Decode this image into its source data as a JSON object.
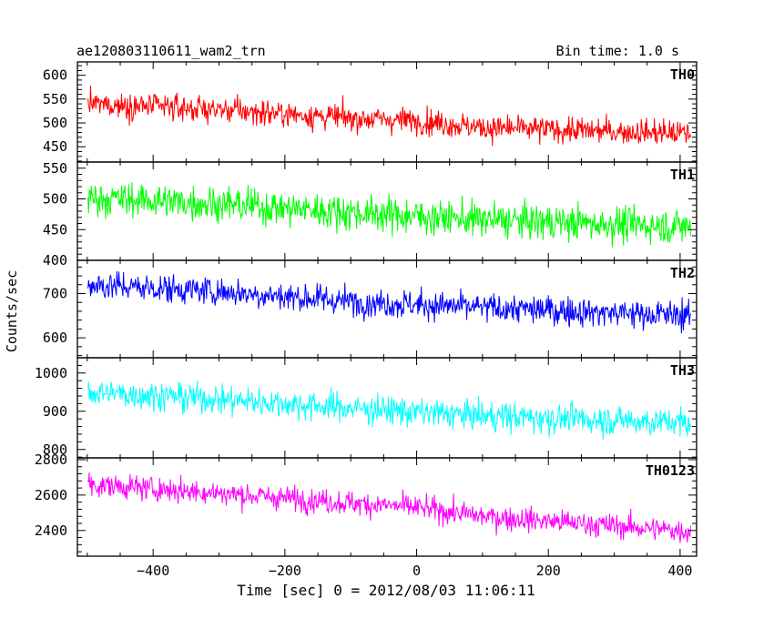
{
  "header": {
    "title": "ae120803110611_wam2_trn",
    "bin_time": "Bin time: 1.0 s"
  },
  "chart_data": {
    "type": "line",
    "title": "ae120803110611_wam2_trn",
    "subtitle": "Bin time: 1.0 s",
    "xlabel": "Time [sec] 0 = 2012/08/03 11:06:11",
    "ylabel": "Counts/sec",
    "xlim": [
      -515,
      425
    ],
    "x_ticks": [
      -400,
      -200,
      0,
      200,
      400
    ],
    "x_tick_labels": [
      "−400",
      "−200",
      "0",
      "200",
      "400"
    ],
    "x_start": -499,
    "x_end": 416,
    "grid": false,
    "panels": [
      {
        "name": "TH0",
        "color": "#ff0000",
        "ylim": [
          418,
          628
        ],
        "ticks": [
          450,
          500,
          550,
          600
        ],
        "trend": [
          [
            -499,
            540
          ],
          [
            -300,
            528
          ],
          [
            -100,
            510
          ],
          [
            0,
            505
          ],
          [
            100,
            490
          ],
          [
            416,
            478
          ]
        ],
        "noise_sd": 19
      },
      {
        "name": "TH1",
        "color": "#00ff00",
        "ylim": [
          400,
          560
        ],
        "ticks": [
          400,
          450,
          500,
          550
        ],
        "trend": [
          [
            -499,
            502
          ],
          [
            -300,
            492
          ],
          [
            -100,
            478
          ],
          [
            100,
            466
          ],
          [
            416,
            455
          ]
        ],
        "noise_sd": 20
      },
      {
        "name": "TH2",
        "color": "#0000ff",
        "ylim": [
          555,
          775
        ],
        "ticks": [
          600,
          700
        ],
        "trend": [
          [
            -499,
            720
          ],
          [
            -300,
            705
          ],
          [
            -100,
            682
          ],
          [
            100,
            668
          ],
          [
            416,
            650
          ]
        ],
        "noise_sd": 23
      },
      {
        "name": "TH3",
        "color": "#00ffff",
        "ylim": [
          778,
          1040
        ],
        "ticks": [
          800,
          900,
          1000
        ],
        "trend": [
          [
            -499,
            950
          ],
          [
            -300,
            932
          ],
          [
            -100,
            908
          ],
          [
            100,
            888
          ],
          [
            416,
            870
          ]
        ],
        "noise_sd": 27
      },
      {
        "name": "TH0123",
        "color": "#ff00ff",
        "ylim": [
          2255,
          2810
        ],
        "ticks": [
          2400,
          2600,
          2800
        ],
        "trend": [
          [
            -499,
            2660
          ],
          [
            -300,
            2612
          ],
          [
            -100,
            2555
          ],
          [
            0,
            2530
          ],
          [
            100,
            2480
          ],
          [
            416,
            2395
          ]
        ],
        "noise_sd": 48
      }
    ]
  }
}
